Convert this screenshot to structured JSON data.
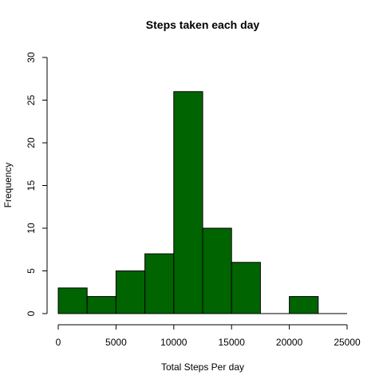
{
  "chart_data": {
    "type": "bar",
    "title": "Steps taken each day",
    "xlabel": "Total Steps Per day",
    "ylabel": "Frequency",
    "xlim": [
      0,
      25000
    ],
    "ylim": [
      0,
      30
    ],
    "x_ticks": [
      0,
      5000,
      10000,
      15000,
      20000,
      25000
    ],
    "y_ticks": [
      0,
      5,
      10,
      15,
      20,
      25,
      30
    ],
    "bin_width": 2500,
    "bins": [
      {
        "start": 0,
        "end": 2500,
        "count": 3
      },
      {
        "start": 2500,
        "end": 5000,
        "count": 2
      },
      {
        "start": 5000,
        "end": 7500,
        "count": 5
      },
      {
        "start": 7500,
        "end": 10000,
        "count": 7
      },
      {
        "start": 10000,
        "end": 12500,
        "count": 26
      },
      {
        "start": 12500,
        "end": 15000,
        "count": 10
      },
      {
        "start": 15000,
        "end": 17500,
        "count": 6
      },
      {
        "start": 17500,
        "end": 20000,
        "count": 0
      },
      {
        "start": 20000,
        "end": 22500,
        "count": 2
      },
      {
        "start": 22500,
        "end": 25000,
        "count": 0
      }
    ],
    "bar_color": "#006400",
    "grid": false
  }
}
